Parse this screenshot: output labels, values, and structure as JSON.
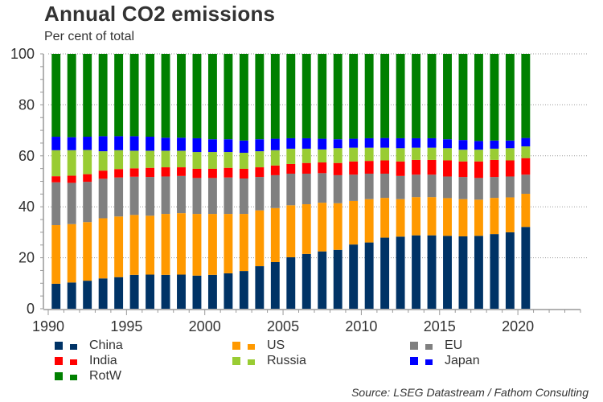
{
  "chart_data": {
    "type": "bar",
    "stacked": true,
    "title": "Annual CO2 emissions",
    "subtitle": "Per cent of total",
    "xlabel": "",
    "ylabel": "Per cent of total",
    "ylim": [
      0,
      100
    ],
    "xlim": [
      1990,
      2024
    ],
    "yticks": [
      0,
      20,
      40,
      60,
      80,
      100
    ],
    "xticks": [
      1990,
      1995,
      2000,
      2005,
      2010,
      2015,
      2020
    ],
    "grid": "horizontal dotted",
    "legend_position": "bottom",
    "categories": [
      1990,
      1991,
      1992,
      1993,
      1994,
      1995,
      1996,
      1997,
      1998,
      1999,
      2000,
      2001,
      2002,
      2003,
      2004,
      2005,
      2006,
      2007,
      2008,
      2009,
      2010,
      2011,
      2012,
      2013,
      2014,
      2015,
      2016,
      2017,
      2018,
      2019,
      2020
    ],
    "series": [
      {
        "name": "China",
        "color": "#003366",
        "values": [
          9.8,
          10.3,
          11.0,
          11.9,
          12.4,
          13.3,
          13.4,
          13.3,
          13.4,
          13.0,
          13.3,
          13.9,
          14.8,
          16.7,
          18.3,
          20.2,
          21.5,
          22.5,
          23.1,
          25.2,
          26.0,
          27.9,
          28.3,
          28.8,
          28.8,
          28.6,
          28.4,
          28.6,
          29.3,
          30.0,
          32.1
        ]
      },
      {
        "name": "US",
        "color": "#FF9900",
        "values": [
          23.0,
          22.9,
          23.0,
          23.6,
          23.8,
          23.5,
          23.1,
          23.9,
          24.1,
          24.2,
          23.9,
          23.3,
          22.4,
          21.9,
          21.2,
          20.4,
          19.5,
          19.1,
          18.3,
          17.1,
          17.0,
          15.6,
          14.7,
          15.0,
          15.0,
          14.8,
          14.6,
          14.2,
          14.2,
          13.7,
          13.0
        ]
      },
      {
        "name": "EU",
        "color": "#808080",
        "values": [
          16.8,
          16.2,
          15.8,
          15.5,
          15.3,
          15.0,
          15.2,
          14.7,
          14.6,
          14.1,
          14.1,
          14.3,
          13.9,
          13.1,
          12.9,
          12.4,
          12.0,
          11.6,
          11.0,
          10.3,
          10.0,
          9.5,
          9.1,
          8.8,
          8.8,
          8.5,
          8.7,
          8.5,
          8.2,
          8.2,
          7.5
        ]
      },
      {
        "name": "India",
        "color": "#FF0000",
        "values": [
          2.4,
          2.8,
          3.0,
          3.2,
          3.3,
          3.3,
          3.6,
          3.6,
          3.4,
          3.6,
          3.6,
          3.8,
          3.8,
          3.8,
          3.8,
          3.8,
          4.2,
          4.2,
          4.8,
          5.2,
          5.0,
          5.2,
          5.7,
          5.8,
          5.8,
          6.3,
          6.1,
          6.5,
          6.7,
          6.3,
          6.5
        ]
      },
      {
        "name": "Russia",
        "color": "#99CC33",
        "values": [
          10.2,
          10.0,
          9.5,
          7.6,
          7.4,
          6.9,
          6.7,
          6.5,
          6.5,
          6.6,
          6.6,
          6.2,
          6.3,
          6.3,
          6.0,
          6.0,
          5.6,
          5.1,
          5.8,
          5.4,
          5.2,
          5.0,
          5.2,
          4.8,
          4.8,
          4.8,
          4.6,
          4.6,
          4.4,
          4.8,
          4.6
        ]
      },
      {
        "name": "Japan",
        "color": "#0000FF",
        "values": [
          5.3,
          5.1,
          5.2,
          5.9,
          5.5,
          5.7,
          5.5,
          5.1,
          5.1,
          5.4,
          5.0,
          5.0,
          4.8,
          4.7,
          4.5,
          4.1,
          4.1,
          4.2,
          3.5,
          3.5,
          3.7,
          3.8,
          3.9,
          3.7,
          3.7,
          3.5,
          3.8,
          3.4,
          3.2,
          3.0,
          3.3
        ]
      },
      {
        "name": "RotW",
        "color": "#008000",
        "values": [
          32.5,
          32.7,
          32.5,
          32.3,
          32.3,
          32.3,
          32.5,
          32.9,
          32.9,
          33.1,
          33.5,
          33.5,
          34.0,
          33.5,
          33.3,
          33.1,
          33.1,
          33.3,
          33.5,
          33.3,
          33.1,
          33.0,
          33.1,
          33.1,
          33.1,
          33.5,
          33.8,
          34.2,
          34.0,
          34.0,
          33.0
        ]
      }
    ]
  },
  "header": {
    "title": "Annual CO2 emissions",
    "subtitle": "Per cent of total"
  },
  "legend": {
    "items": [
      {
        "label": "China",
        "color": "#003366"
      },
      {
        "label": "US",
        "color": "#FF9900"
      },
      {
        "label": "EU",
        "color": "#808080"
      },
      {
        "label": "India",
        "color": "#FF0000"
      },
      {
        "label": "Russia",
        "color": "#99CC33"
      },
      {
        "label": "Japan",
        "color": "#0000FF"
      },
      {
        "label": "RotW",
        "color": "#008000"
      }
    ]
  },
  "footer": {
    "source": "Source: LSEG Datastream / Fathom Consulting"
  }
}
